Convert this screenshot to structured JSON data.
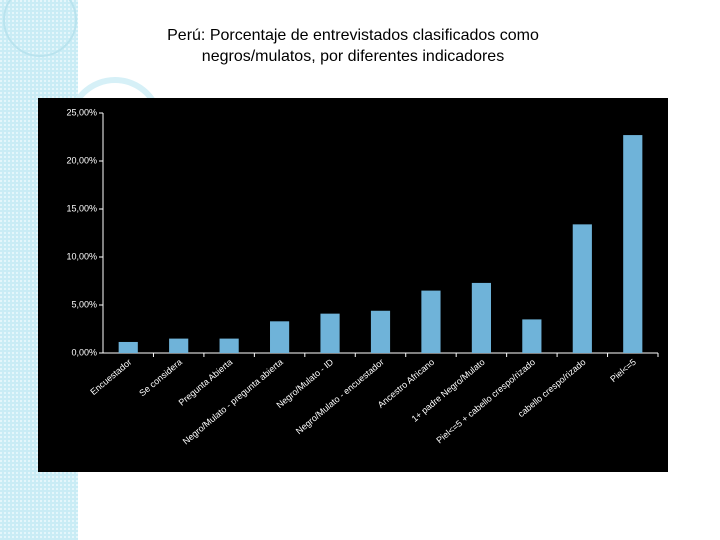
{
  "chart_data": {
    "type": "bar",
    "title": "Perú: Porcentaje de entrevistados clasificados como negros/mulatos, por diferentes indicadores",
    "categories": [
      "Encuestador",
      "Se considera",
      "Pregunta Abierta",
      "Negro/Mulato - pregunta abierta",
      "Negro/Mulato - ID",
      "Negro/Mulato - encuestador",
      "Ancestro Africano",
      "1+ padre Negro/Mulato",
      "Piel<=5 + cabello crespo/rizado",
      "cabello crespo/rizado",
      "Piel<=5"
    ],
    "values": [
      1.15,
      1.5,
      1.5,
      3.3,
      4.1,
      4.4,
      6.5,
      7.3,
      3.5,
      13.4,
      22.7
    ],
    "color": "#6fb3d9",
    "ylim": [
      0,
      25
    ],
    "yticks": [
      {
        "value": 0,
        "label": "0,00%"
      },
      {
        "value": 5,
        "label": "5,00%"
      },
      {
        "value": 10,
        "label": "10,00%"
      },
      {
        "value": 15,
        "label": "15,00%"
      },
      {
        "value": 20,
        "label": "20,00%"
      },
      {
        "value": 25,
        "label": "25,00%"
      }
    ],
    "grid": false
  }
}
